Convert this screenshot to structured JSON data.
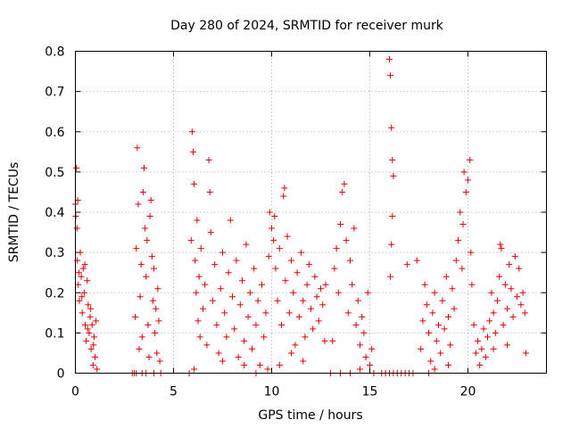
{
  "chart_data": {
    "type": "scatter",
    "title": "Day 280 of 2024, SRMTID for receiver murk",
    "xlabel": "GPS time / hours",
    "ylabel": "SRMTID / TECUs",
    "xlim": [
      0,
      24
    ],
    "ylim": [
      0,
      0.8
    ],
    "xticks": [
      0,
      5,
      10,
      15,
      20
    ],
    "yticks": [
      0,
      0.1,
      0.2,
      0.3,
      0.4,
      0.5,
      0.6,
      0.7,
      0.8
    ],
    "ytick_labels": [
      "0",
      "0.1",
      "0.2",
      "0.3",
      "0.4",
      "0.5",
      "0.6",
      "0.7",
      "0.8"
    ],
    "grid": true,
    "marker": "plus",
    "color": "#e00000",
    "series": [
      {
        "points": [
          [
            0.0,
            0.42
          ],
          [
            0.05,
            0.51
          ],
          [
            0.08,
            0.36
          ],
          [
            0.1,
            0.28
          ],
          [
            0.12,
            0.43
          ],
          [
            0.15,
            0.22
          ],
          [
            0.2,
            0.18
          ],
          [
            0.25,
            0.3
          ],
          [
            0.3,
            0.24
          ],
          [
            0.35,
            0.15
          ],
          [
            0.4,
            0.26
          ],
          [
            0.45,
            0.2
          ],
          [
            0.5,
            0.12
          ],
          [
            0.55,
            0.08
          ],
          [
            0.6,
            0.23
          ],
          [
            0.65,
            0.17
          ],
          [
            0.7,
            0.1
          ],
          [
            0.75,
            0.14
          ],
          [
            0.8,
            0.06
          ],
          [
            0.85,
            0.12
          ],
          [
            0.9,
            0.02
          ],
          [
            0.95,
            0.09
          ],
          [
            1.0,
            0.04
          ],
          [
            1.05,
            0.13
          ],
          [
            1.1,
            0.01
          ],
          [
            0.02,
            0.39
          ],
          [
            0.18,
            0.25
          ],
          [
            0.33,
            0.19
          ],
          [
            0.48,
            0.27
          ],
          [
            0.62,
            0.11
          ],
          [
            0.78,
            0.16
          ],
          [
            0.92,
            0.07
          ],
          [
            2.9,
            0.0
          ],
          [
            3.0,
            0.0
          ],
          [
            3.1,
            0.0
          ],
          [
            3.05,
            0.14
          ],
          [
            3.1,
            0.31
          ],
          [
            3.15,
            0.56
          ],
          [
            3.2,
            0.42
          ],
          [
            3.25,
            0.06
          ],
          [
            3.3,
            0.19
          ],
          [
            3.35,
            0.27
          ],
          [
            3.4,
            0.09
          ],
          [
            3.45,
            0.45
          ],
          [
            3.5,
            0.51
          ],
          [
            3.55,
            0.36
          ],
          [
            3.6,
            0.24
          ],
          [
            3.65,
            0.33
          ],
          [
            3.7,
            0.12
          ],
          [
            3.75,
            0.04
          ],
          [
            3.8,
            0.39
          ],
          [
            3.85,
            0.43
          ],
          [
            3.9,
            0.29
          ],
          [
            3.95,
            0.18
          ],
          [
            4.0,
            0.26
          ],
          [
            4.05,
            0.1
          ],
          [
            4.1,
            0.16
          ],
          [
            4.15,
            0.05
          ],
          [
            4.2,
            0.21
          ],
          [
            4.25,
            0.13
          ],
          [
            4.3,
            0.03
          ],
          [
            4.35,
            0.0
          ],
          [
            3.4,
            0.0
          ],
          [
            3.6,
            0.0
          ],
          [
            4.0,
            0.0
          ],
          [
            5.8,
            0.0
          ],
          [
            5.9,
            0.33
          ],
          [
            5.95,
            0.6
          ],
          [
            6.0,
            0.55
          ],
          [
            6.05,
            0.47
          ],
          [
            6.1,
            0.28
          ],
          [
            6.15,
            0.2
          ],
          [
            6.2,
            0.38
          ],
          [
            6.25,
            0.13
          ],
          [
            6.3,
            0.24
          ],
          [
            6.35,
            0.09
          ],
          [
            6.4,
            0.31
          ],
          [
            6.5,
            0.16
          ],
          [
            6.6,
            0.22
          ],
          [
            6.7,
            0.07
          ],
          [
            6.8,
            0.53
          ],
          [
            6.85,
            0.45
          ],
          [
            6.9,
            0.35
          ],
          [
            7.0,
            0.18
          ],
          [
            7.1,
            0.27
          ],
          [
            7.2,
            0.12
          ],
          [
            7.3,
            0.05
          ],
          [
            7.4,
            0.21
          ],
          [
            7.5,
            0.3
          ],
          [
            7.6,
            0.15
          ],
          [
            7.7,
            0.09
          ],
          [
            7.8,
            0.25
          ],
          [
            7.9,
            0.38
          ],
          [
            8.0,
            0.19
          ],
          [
            8.1,
            0.11
          ],
          [
            8.2,
            0.28
          ],
          [
            8.3,
            0.04
          ],
          [
            8.4,
            0.17
          ],
          [
            8.5,
            0.23
          ],
          [
            8.6,
            0.08
          ],
          [
            8.7,
            0.32
          ],
          [
            8.8,
            0.14
          ],
          [
            8.9,
            0.2
          ],
          [
            9.0,
            0.06
          ],
          [
            9.1,
            0.26
          ],
          [
            9.2,
            0.12
          ],
          [
            9.3,
            0.18
          ],
          [
            9.4,
            0.02
          ],
          [
            9.5,
            0.22
          ],
          [
            9.6,
            0.09
          ],
          [
            9.7,
            0.15
          ],
          [
            9.8,
            0.01
          ],
          [
            6.05,
            0.01
          ],
          [
            7.5,
            0.03
          ],
          [
            8.6,
            0.02
          ],
          [
            9.2,
            0.0
          ],
          [
            9.85,
            0.29
          ],
          [
            9.9,
            0.4
          ],
          [
            10.0,
            0.36
          ],
          [
            10.1,
            0.33
          ],
          [
            10.15,
            0.39
          ],
          [
            10.2,
            0.26
          ],
          [
            10.3,
            0.18
          ],
          [
            10.4,
            0.31
          ],
          [
            10.5,
            0.12
          ],
          [
            10.6,
            0.44
          ],
          [
            10.65,
            0.46
          ],
          [
            10.7,
            0.23
          ],
          [
            10.8,
            0.34
          ],
          [
            10.9,
            0.15
          ],
          [
            11.0,
            0.28
          ],
          [
            11.1,
            0.2
          ],
          [
            11.2,
            0.07
          ],
          [
            11.3,
            0.25
          ],
          [
            11.4,
            0.14
          ],
          [
            11.5,
            0.3
          ],
          [
            11.6,
            0.18
          ],
          [
            11.7,
            0.09
          ],
          [
            11.8,
            0.22
          ],
          [
            11.9,
            0.27
          ],
          [
            12.0,
            0.16
          ],
          [
            12.1,
            0.11
          ],
          [
            12.2,
            0.24
          ],
          [
            12.3,
            0.19
          ],
          [
            12.4,
            0.13
          ],
          [
            12.5,
            0.21
          ],
          [
            12.6,
            0.17
          ],
          [
            12.7,
            0.08
          ],
          [
            12.75,
            0.22
          ],
          [
            10.4,
            0.02
          ],
          [
            11.0,
            0.05
          ],
          [
            11.6,
            0.03
          ],
          [
            13.0,
            0.0
          ],
          [
            13.1,
            0.08
          ],
          [
            13.2,
            0.26
          ],
          [
            13.3,
            0.31
          ],
          [
            13.4,
            0.2
          ],
          [
            13.5,
            0.37
          ],
          [
            13.6,
            0.45
          ],
          [
            13.7,
            0.47
          ],
          [
            13.8,
            0.33
          ],
          [
            13.9,
            0.15
          ],
          [
            14.0,
            0.28
          ],
          [
            14.1,
            0.22
          ],
          [
            14.2,
            0.36
          ],
          [
            14.3,
            0.12
          ],
          [
            14.4,
            0.18
          ],
          [
            14.5,
            0.07
          ],
          [
            14.6,
            0.14
          ],
          [
            14.7,
            0.1
          ],
          [
            14.8,
            0.04
          ],
          [
            14.9,
            0.2
          ],
          [
            15.0,
            0.02
          ],
          [
            15.1,
            0.06
          ],
          [
            15.2,
            0.0
          ],
          [
            13.5,
            0.0
          ],
          [
            14.0,
            0.0
          ],
          [
            14.5,
            0.01
          ],
          [
            16.0,
            0.78
          ],
          [
            16.05,
            0.74
          ],
          [
            16.1,
            0.61
          ],
          [
            16.15,
            0.53
          ],
          [
            16.2,
            0.49
          ],
          [
            16.15,
            0.39
          ],
          [
            16.1,
            0.32
          ],
          [
            16.05,
            0.24
          ],
          [
            15.6,
            0.0
          ],
          [
            15.8,
            0.0
          ],
          [
            16.0,
            0.0
          ],
          [
            16.2,
            0.0
          ],
          [
            16.4,
            0.0
          ],
          [
            16.6,
            0.0
          ],
          [
            16.8,
            0.0
          ],
          [
            17.0,
            0.0
          ],
          [
            17.2,
            0.0
          ],
          [
            16.9,
            0.27
          ],
          [
            17.4,
            0.28
          ],
          [
            17.6,
            0.06
          ],
          [
            17.7,
            0.13
          ],
          [
            17.8,
            0.22
          ],
          [
            17.9,
            0.17
          ],
          [
            18.0,
            0.1
          ],
          [
            18.1,
            0.03
          ],
          [
            18.2,
            0.15
          ],
          [
            18.3,
            0.2
          ],
          [
            18.4,
            0.08
          ],
          [
            18.5,
            0.12
          ],
          [
            18.6,
            0.05
          ],
          [
            18.7,
            0.18
          ],
          [
            18.8,
            0.11
          ],
          [
            18.9,
            0.24
          ],
          [
            19.0,
            0.14
          ],
          [
            19.1,
            0.07
          ],
          [
            19.2,
            0.21
          ],
          [
            19.3,
            0.16
          ],
          [
            19.4,
            0.28
          ],
          [
            19.5,
            0.33
          ],
          [
            19.6,
            0.4
          ],
          [
            19.7,
            0.26
          ],
          [
            19.75,
            0.37
          ],
          [
            19.8,
            0.5
          ],
          [
            19.9,
            0.45
          ],
          [
            20.0,
            0.48
          ],
          [
            20.1,
            0.53
          ],
          [
            20.15,
            0.3
          ],
          [
            20.2,
            0.22
          ],
          [
            20.3,
            0.12
          ],
          [
            20.4,
            0.05
          ],
          [
            20.5,
            0.08
          ],
          [
            20.6,
            0.02
          ],
          [
            20.7,
            0.06
          ],
          [
            20.8,
            0.11
          ],
          [
            20.9,
            0.04
          ],
          [
            21.0,
            0.09
          ],
          [
            18.0,
            0.0
          ],
          [
            18.3,
            0.01
          ],
          [
            19.0,
            0.02
          ],
          [
            21.1,
            0.13
          ],
          [
            21.2,
            0.2
          ],
          [
            21.3,
            0.15
          ],
          [
            21.4,
            0.1
          ],
          [
            21.5,
            0.18
          ],
          [
            21.6,
            0.24
          ],
          [
            21.7,
            0.31
          ],
          [
            21.8,
            0.12
          ],
          [
            21.9,
            0.22
          ],
          [
            22.0,
            0.16
          ],
          [
            22.1,
            0.27
          ],
          [
            22.2,
            0.21
          ],
          [
            22.3,
            0.14
          ],
          [
            22.4,
            0.29
          ],
          [
            22.5,
            0.19
          ],
          [
            22.6,
            0.26
          ],
          [
            22.7,
            0.17
          ],
          [
            22.8,
            0.2
          ],
          [
            22.9,
            0.15
          ],
          [
            22.95,
            0.05
          ],
          [
            21.65,
            0.32
          ],
          [
            22.0,
            0.07
          ],
          [
            21.3,
            0.06
          ]
        ]
      }
    ]
  }
}
